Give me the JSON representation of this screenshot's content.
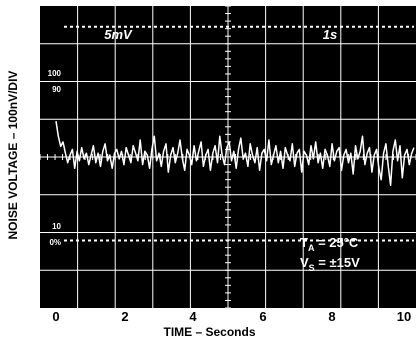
{
  "chart_data": {
    "type": "line",
    "title": "",
    "ylabel": "NOISE VOLTAGE – 100nV/DIV",
    "xlabel": "TIME – Seconds",
    "xlim": [
      0,
      10
    ],
    "x_ticks": [
      "0",
      "2",
      "4",
      "6",
      "8",
      "10"
    ],
    "inside_labels": [
      "100",
      "90",
      "10",
      "0%"
    ],
    "scale_labels": {
      "volts": "5mV",
      "time": "1s"
    },
    "conditions": [
      {
        "main": "T",
        "sub": "A",
        "rest": " = 25°C"
      },
      {
        "main": "V",
        "sub": "S",
        "rest": " = ±15V"
      }
    ],
    "grid": true,
    "series": [
      {
        "values": [
          0.95,
          0.55,
          0.28,
          0.4,
          0.1,
          -0.15,
          0.05,
          0.2,
          -0.3,
          0.15,
          -0.1,
          0.25,
          -0.05,
          0.1,
          -0.2,
          0.05,
          0.3,
          -0.15,
          0.1,
          -0.25,
          0.15,
          0.35,
          -0.1,
          0.05,
          -0.3,
          0.1,
          0.2,
          -0.05,
          0.15,
          -0.2,
          0.25,
          0.05,
          -0.15,
          0.3,
          0.1,
          -0.1,
          0.45,
          -0.2,
          0.15,
          0.05,
          -0.3,
          0.2,
          0.55,
          -0.1,
          0.1,
          -0.25,
          0.15,
          0.35,
          -0.4,
          0.05,
          0.25,
          -0.15,
          0.1,
          0.45,
          -0.05,
          -0.35,
          0.2,
          0.05,
          -0.2,
          0.3,
          -0.1,
          0.15,
          0.4,
          -0.25,
          0.05,
          0.2,
          -0.35,
          0.1,
          0.3,
          -0.15,
          0.55,
          0.05,
          -0.2,
          0.25,
          0.4,
          -0.1,
          0.15,
          -0.3,
          0.2,
          0.5,
          -0.05,
          0.1,
          -0.25,
          0.35,
          0.05,
          -0.15,
          0.25,
          -0.35,
          0.1,
          0.2,
          -0.1,
          0.45,
          -0.2,
          0.05,
          0.3,
          -0.15,
          0.15,
          -0.3,
          0.25,
          0.05,
          -0.1,
          0.35,
          -0.25,
          0.1,
          0.2,
          -0.4,
          0.15,
          0.05,
          -0.2,
          0.3,
          -0.05,
          0.4,
          -0.15,
          0.1,
          -0.3,
          0.2,
          0.05,
          -0.25,
          0.35,
          -0.1,
          0.15,
          0.25,
          -0.35,
          0.05,
          0.2,
          -0.15,
          0.1,
          -0.45,
          0.3,
          -0.05,
          0.15,
          0.55,
          -0.2,
          0.1,
          0.25,
          -0.4,
          0.05,
          0.2,
          -0.3,
          -0.6,
          0.1,
          0.35,
          -0.25,
          -0.75,
          0.15,
          0.45,
          -0.1,
          0.3,
          -0.55,
          0.05,
          0.2,
          -0.2,
          0.1,
          0.25
        ]
      }
    ]
  }
}
